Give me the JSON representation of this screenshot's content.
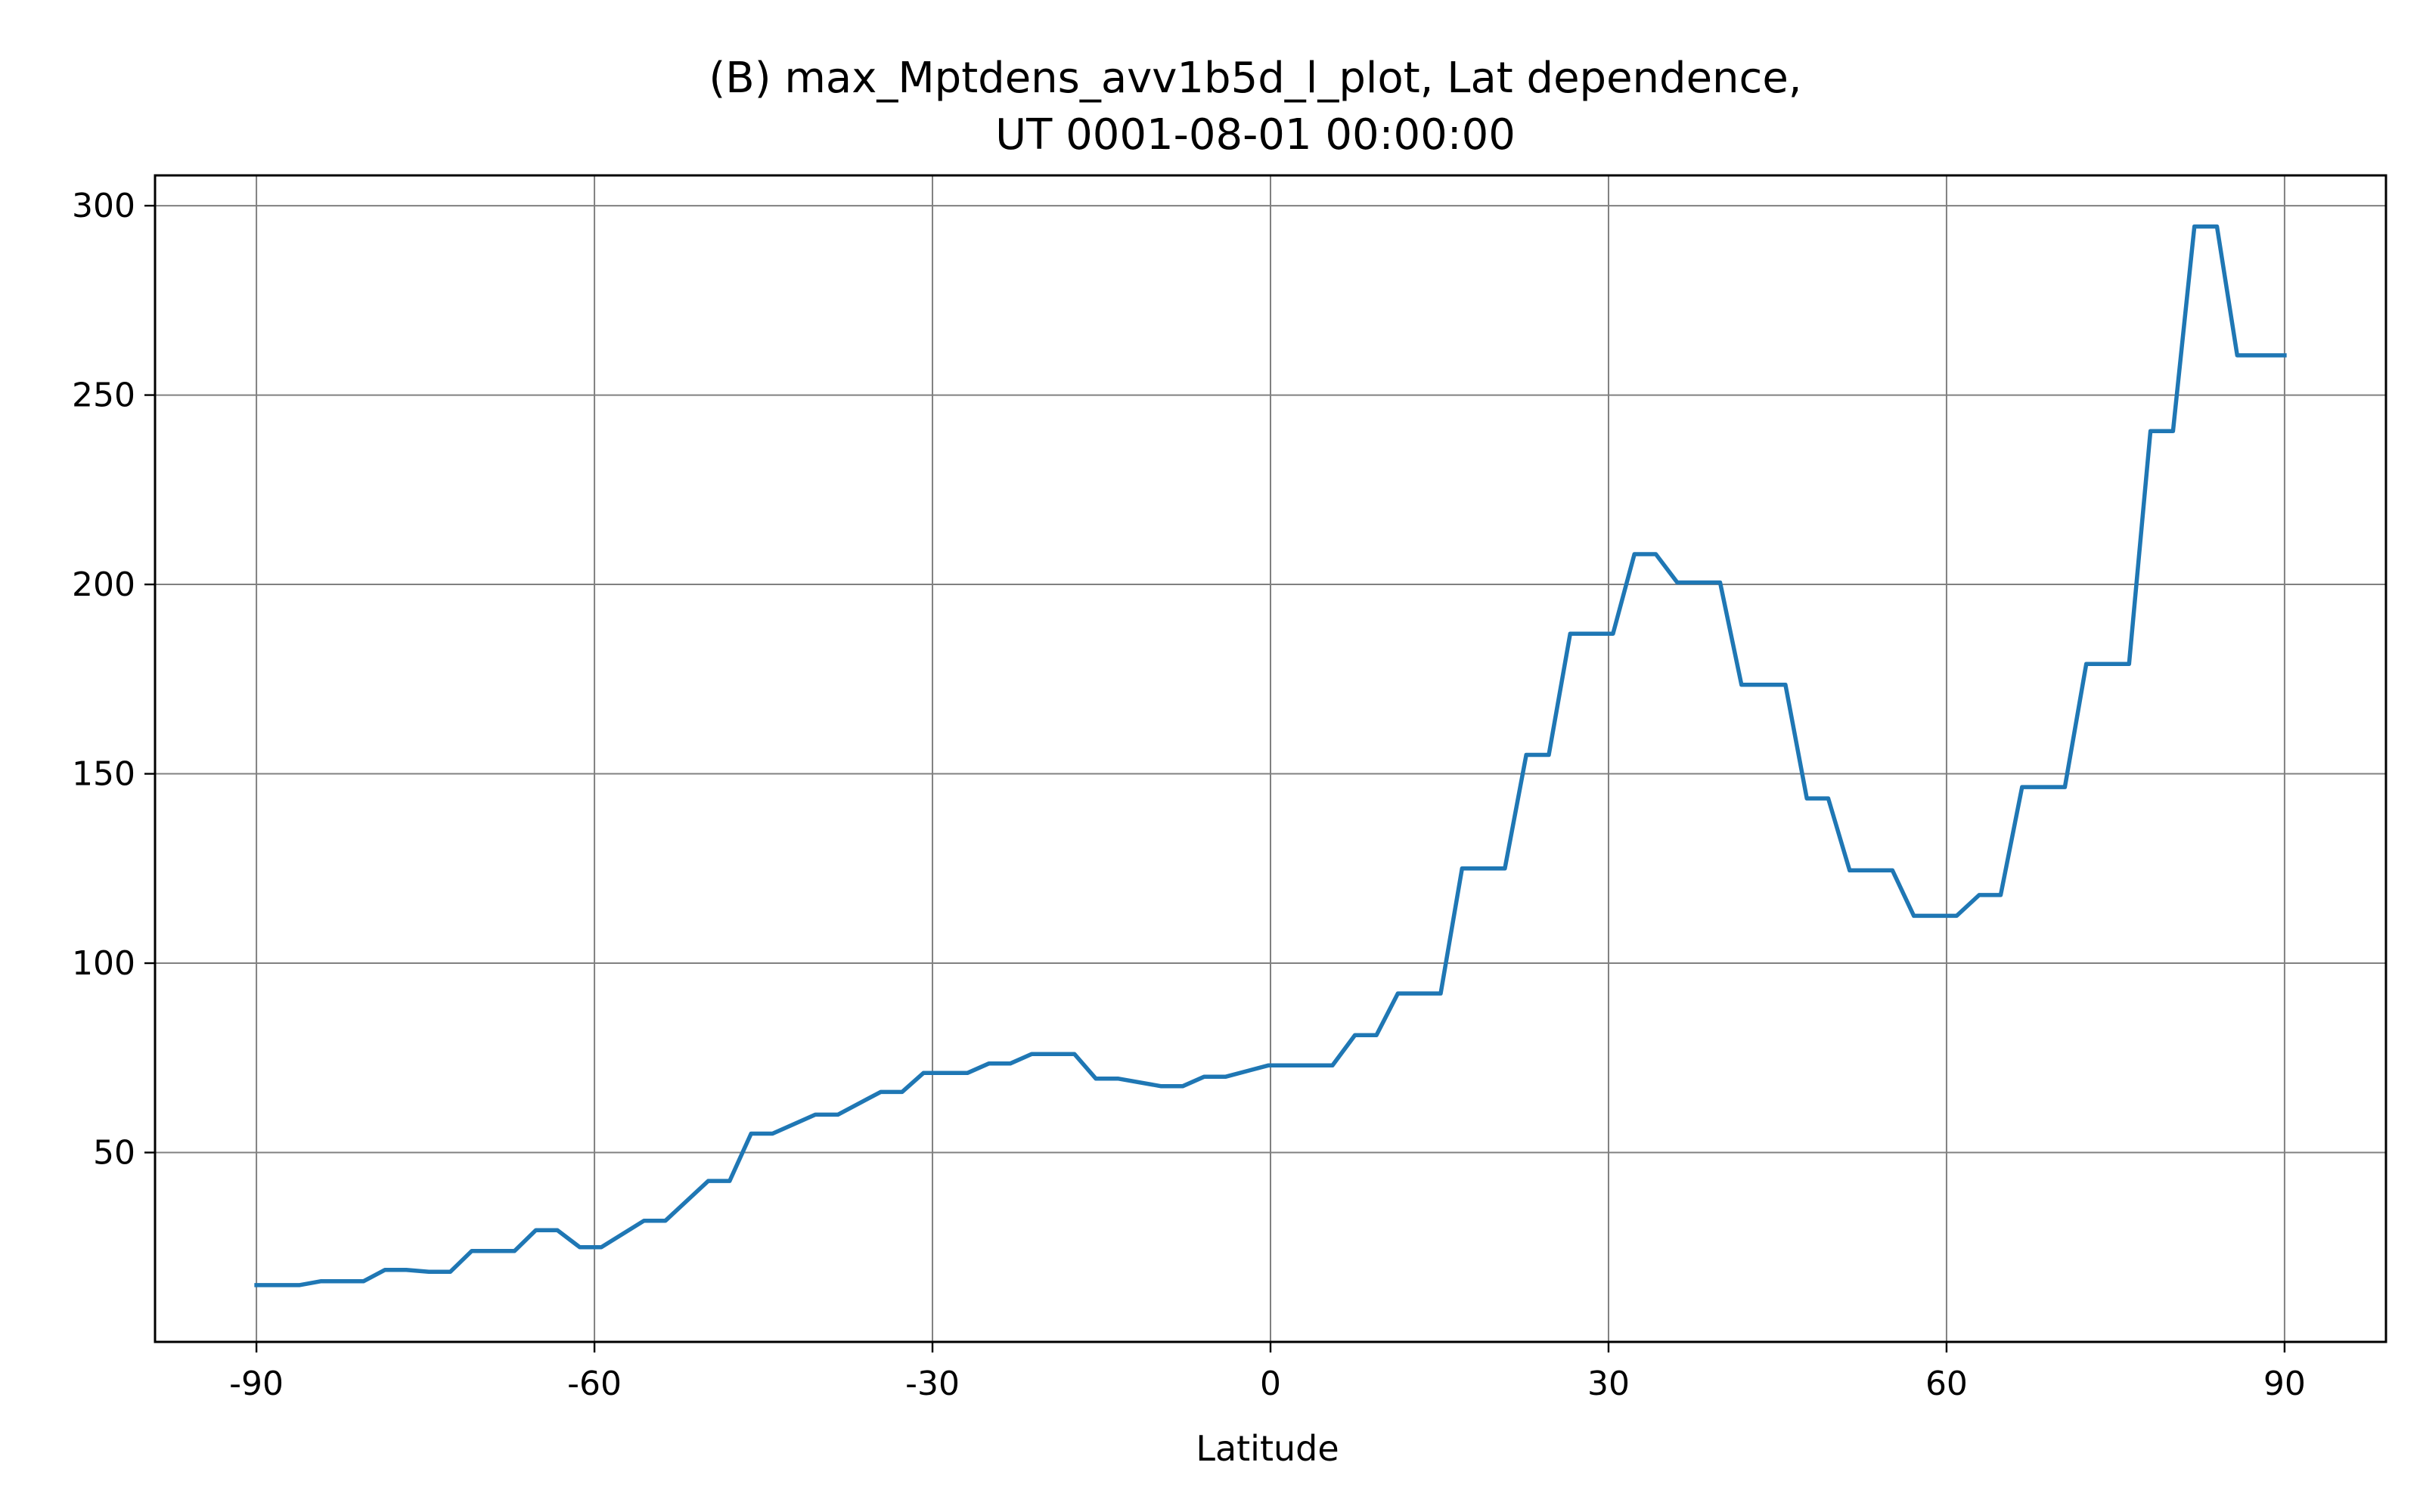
{
  "chart_data": {
    "type": "line",
    "title_lines": [
      "(B) max_Mptdens_avv1b5d_l_plot,  Lat dependence,",
      "UT 0001-08-01 00:00:00"
    ],
    "xlabel": "Latitude",
    "ylabel": "",
    "xlim": [
      -99,
      99
    ],
    "ylim": [
      0,
      308
    ],
    "xticks": [
      -90,
      -60,
      -30,
      0,
      30,
      60,
      90
    ],
    "xtick_labels": [
      "-90",
      "-60",
      "-30",
      "0",
      "30",
      "60",
      "90"
    ],
    "yticks": [
      50,
      100,
      150,
      200,
      250,
      300
    ],
    "ytick_labels": [
      "50",
      "100",
      "150",
      "200",
      "250",
      "300"
    ],
    "grid": true,
    "colors": {
      "series": "#1f77b4",
      "grid": "#808080"
    },
    "series": [
      {
        "x": [
          -90,
          -86.2,
          -84.3,
          -80.5,
          -78.6,
          -76.7,
          -74.7,
          -72.8,
          -70.9,
          -67.1,
          -65.2,
          -63.3,
          -61.3,
          -59.4,
          -55.6,
          -53.7,
          -49.9,
          -48.0,
          -46.1,
          -44.2,
          -40.4,
          -38.4,
          -34.6,
          -32.7,
          -30.8,
          -26.9,
          -25.0,
          -23.1,
          -21.2,
          -19.3,
          -17.4,
          -15.5,
          -13.5,
          -9.7,
          -7.8,
          -5.9,
          -4.0,
          -0.2,
          1.7,
          5.5,
          7.5,
          9.4,
          11.3,
          15.1,
          17.0,
          20.8,
          22.7,
          24.7,
          26.6,
          30.4,
          32.3,
          34.2,
          36.1,
          39.9,
          41.8,
          45.7,
          47.6,
          49.5,
          51.4,
          55.2,
          57.1,
          60.9,
          62.9,
          64.8,
          66.7,
          70.5,
          72.4,
          76.2,
          78.1,
          80.1,
          82.0,
          84.0,
          85.8,
          90.0
        ],
        "y": [
          15,
          15,
          16,
          16,
          19,
          19,
          18.5,
          18.5,
          24,
          24,
          29.5,
          29.5,
          25,
          25,
          32,
          32,
          42.5,
          42.5,
          55,
          55,
          60,
          60,
          66,
          66,
          71,
          71,
          73.5,
          73.5,
          76,
          76,
          76,
          69.5,
          69.5,
          67.5,
          67.5,
          70,
          70,
          73,
          73,
          73,
          81,
          81,
          92,
          92,
          125,
          125,
          155,
          155,
          187,
          187,
          208,
          208,
          200.5,
          200.5,
          173.5,
          173.5,
          143.5,
          143.5,
          124.5,
          124.5,
          112.5,
          112.5,
          118,
          118,
          146.5,
          146.5,
          179,
          179,
          240.5,
          240.5,
          294.5,
          294.5,
          260.5,
          260.5
        ]
      }
    ]
  }
}
